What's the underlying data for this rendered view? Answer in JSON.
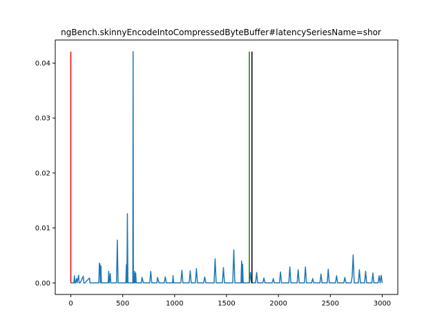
{
  "chart_data": {
    "type": "line",
    "title": "ngBench.skinnyEncodeIntoCompressedByteBuffer#latencySeriesName=shor",
    "xlabel": "",
    "ylabel": "",
    "xlim": [
      -150,
      3150
    ],
    "ylim": [
      -0.0021,
      0.0442
    ],
    "x_ticks": [
      0,
      500,
      1000,
      1500,
      2000,
      2500,
      3000
    ],
    "x_tick_labels": [
      "0",
      "500",
      "1000",
      "1500",
      "2000",
      "2500",
      "3000"
    ],
    "y_ticks": [
      0.0,
      0.01,
      0.02,
      0.03,
      0.04
    ],
    "y_tick_labels": [
      "0.00",
      "0.01",
      "0.02",
      "0.03",
      "0.04"
    ],
    "grid": false,
    "series": [
      {
        "color": "#1f77b4",
        "x": [
          0,
          30,
          35,
          40,
          45,
          55,
          60,
          75,
          80,
          90,
          120,
          125,
          135,
          180,
          185,
          195,
          270,
          275,
          280,
          285,
          290,
          295,
          300,
          360,
          365,
          370,
          380,
          385,
          390,
          440,
          448,
          455,
          460,
          465,
          470,
          530,
          535,
          540,
          545,
          550,
          555,
          560,
          590,
          597,
          600,
          603,
          610,
          615,
          620,
          625,
          630,
          680,
          685,
          700,
          760,
          770,
          780,
          830,
          835,
          850,
          900,
          910,
          920,
          930,
          980,
          985,
          990,
          1000,
          1060,
          1070,
          1080,
          1140,
          1150,
          1160,
          1200,
          1210,
          1220,
          1280,
          1290,
          1300,
          1380,
          1390,
          1400,
          1410,
          1460,
          1470,
          1480,
          1560,
          1570,
          1580,
          1640,
          1645,
          1650,
          1655,
          1660,
          1720,
          1730,
          1740,
          1780,
          1790,
          1800,
          1850,
          1860,
          1870,
          1940,
          1950,
          1960,
          2010,
          2020,
          2030,
          2100,
          2110,
          2120,
          2180,
          2190,
          2200,
          2250,
          2260,
          2270,
          2320,
          2330,
          2340,
          2400,
          2410,
          2420,
          2470,
          2480,
          2490,
          2550,
          2560,
          2570,
          2630,
          2640,
          2650,
          2700,
          2710,
          2720,
          2730,
          2770,
          2780,
          2790,
          2830,
          2840,
          2850,
          2900,
          2910,
          2920,
          2960,
          2970,
          2980,
          2990,
          3000
        ],
        "y": [
          0.0,
          0.0,
          0.0013,
          0.0,
          0.0,
          0.0008,
          0.0,
          0.0014,
          0.0,
          0.0,
          0.0012,
          0.0,
          0.0,
          0.0009,
          0.0,
          0.0,
          0.0,
          0.0036,
          0.0034,
          0.0,
          0.0031,
          0.0,
          0.0,
          0.0,
          0.0021,
          0.0,
          0.0017,
          0.0,
          0.0,
          0.0,
          0.0078,
          0.0,
          0.0,
          0.0,
          0.0,
          0.0,
          0.0033,
          0.0,
          0.0126,
          0.0,
          0.0,
          0.0,
          0.0,
          0.0,
          0.0421,
          0.0,
          0.0,
          0.0021,
          0.0,
          0.0018,
          0.0,
          0.0,
          0.001,
          0.0,
          0.0,
          0.0021,
          0.0,
          0.0,
          0.001,
          0.0,
          0.0,
          0.0011,
          0.0,
          0.0,
          0.0,
          0.0013,
          0.0,
          0.0,
          0.0,
          0.0023,
          0.0,
          0.0,
          0.0022,
          0.0,
          0.0,
          0.0026,
          0.0,
          0.0,
          0.0011,
          0.0,
          0.0,
          0.0044,
          0.0,
          0.0,
          0.0,
          0.0028,
          0.0,
          0.0,
          0.006,
          0.0,
          0.0,
          0.004,
          0.0,
          0.0034,
          0.0,
          0.0,
          0.0019,
          0.0,
          0.0,
          0.0019,
          0.0,
          0.0,
          0.0009,
          0.0,
          0.0,
          0.0008,
          0.0,
          0.0,
          0.002,
          0.0,
          0.0,
          0.0029,
          0.0,
          0.0,
          0.0024,
          0.0,
          0.0,
          0.0029,
          0.0,
          0.0,
          0.0008,
          0.0,
          0.0,
          0.0016,
          0.0,
          0.0,
          0.0025,
          0.0,
          0.0,
          0.0013,
          0.0,
          0.0,
          0.001,
          0.0,
          0.0,
          0.0011,
          0.0051,
          0.0,
          0.0,
          0.0024,
          0.0,
          0.0,
          0.0021,
          0.0,
          0.0,
          0.0018,
          0.0,
          0.0,
          0.0013,
          0.0,
          0.0014,
          0.0
        ]
      }
    ],
    "vertical_lines": [
      {
        "x": 0,
        "y": [
          0.0,
          0.0421
        ],
        "color": "#ff0000"
      },
      {
        "x": 1720,
        "y": [
          0.0,
          0.0421
        ],
        "color": "#008000"
      },
      {
        "x": 1745,
        "y": [
          0.0,
          0.0421
        ],
        "color": "#000000"
      }
    ]
  }
}
